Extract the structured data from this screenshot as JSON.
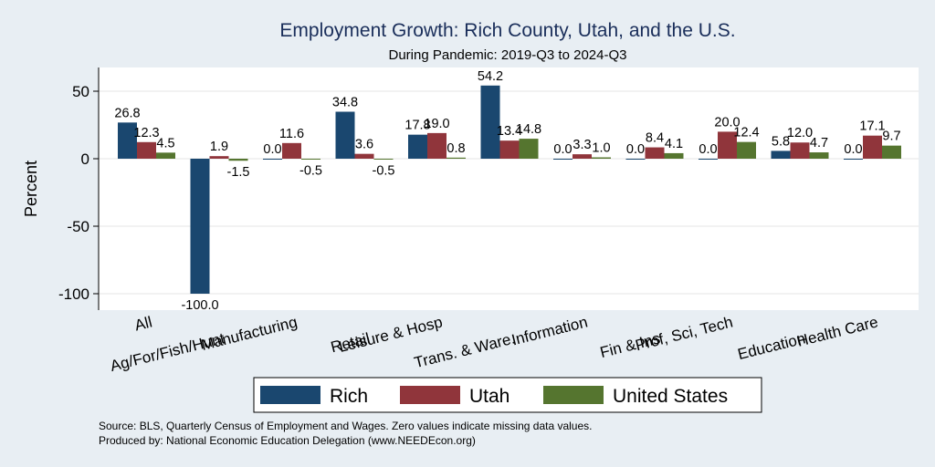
{
  "chart_data": {
    "type": "bar",
    "title": "Employment Growth: Rich County, Utah, and the U.S.",
    "subtitle": "During Pandemic: 2019-Q3 to 2024-Q3",
    "ylabel": "Percent",
    "xlabel": "",
    "ylim": [
      -107,
      63
    ],
    "yticks": [
      50,
      0,
      -50,
      -100
    ],
    "grid": true,
    "legend_position": "bottom",
    "categories": [
      "All",
      "Ag/For/Fish/Hunt",
      "Manufacturing",
      "Retail",
      "Leisure & Hosp",
      "Trans. & Ware.",
      "Information",
      "Fin & Ins",
      "Prof, Sci, Tech",
      "Education",
      "Health Care"
    ],
    "series": [
      {
        "name": "Rich",
        "color": "#1a476f",
        "values": [
          26.8,
          -100.0,
          0.0,
          34.8,
          17.8,
          54.2,
          0.0,
          0.0,
          0.0,
          5.8,
          0.0
        ],
        "labels": [
          "26.8",
          "-100.0",
          "0.0",
          "34.8",
          "17.8",
          "54.2",
          "0.0",
          "0.0",
          "0.0",
          "5.8",
          "0.0"
        ]
      },
      {
        "name": "Utah",
        "color": "#90353b",
        "values": [
          12.3,
          1.9,
          11.6,
          3.6,
          19.0,
          13.4,
          3.3,
          8.4,
          20.0,
          12.0,
          17.1
        ],
        "labels": [
          "12.3",
          "1.9",
          "11.6",
          "3.6",
          "19.0",
          "13.4",
          "3.3",
          "8.4",
          "20.0",
          "12.0",
          "17.1"
        ]
      },
      {
        "name": "United States",
        "color": "#55752f",
        "values": [
          4.5,
          -1.5,
          -0.5,
          -0.5,
          0.8,
          14.8,
          1.0,
          4.1,
          12.4,
          4.7,
          9.7
        ],
        "labels": [
          "4.5",
          "-1.5",
          "-0.5",
          "-0.5",
          "0.8",
          "14.8",
          "1.0",
          "4.1",
          "12.4",
          "4.7",
          "9.7"
        ]
      }
    ]
  },
  "footer": {
    "source": "Source: BLS, Quarterly Census of Employment and Wages. Zero values indicate missing data values.",
    "produced_by": "Produced by: National Economic Education Delegation (www.NEEDEcon.org)"
  }
}
